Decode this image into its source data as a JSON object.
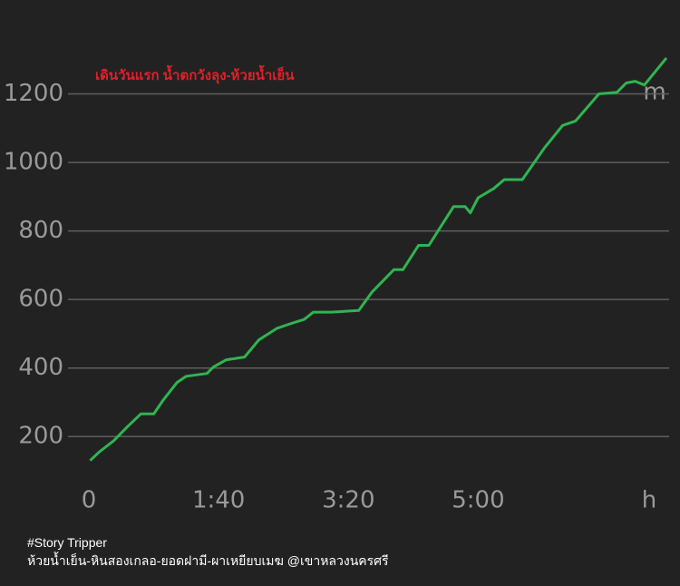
{
  "chart_data": {
    "type": "line",
    "title": "เดินวันแรก น้ำตกวังลุง-ห้วยน้ำเย็น",
    "x": [
      1,
      8,
      19,
      29,
      40,
      50,
      57,
      68,
      75,
      91,
      96,
      106,
      120,
      131,
      145,
      155,
      166,
      173,
      187,
      208,
      218,
      235,
      242,
      254,
      262,
      281,
      290,
      294,
      300,
      312,
      320,
      334,
      351,
      365,
      375,
      393,
      407,
      414,
      421,
      428,
      445
    ],
    "values": [
      130,
      155,
      187,
      226,
      266,
      266,
      305,
      358,
      376,
      384,
      403,
      424,
      432,
      482,
      516,
      529,
      542,
      563,
      563,
      568,
      621,
      687,
      687,
      758,
      758,
      871,
      871,
      853,
      897,
      924,
      950,
      950,
      1042,
      1108,
      1121,
      1200,
      1205,
      1232,
      1237,
      1226,
      1305
    ],
    "color": "#2fb551",
    "xlim": [
      0,
      445
    ],
    "ylim": [
      100,
      1310
    ],
    "xticks": [
      0,
      {
        "value": 100,
        "label": "1:40"
      },
      {
        "value": 200,
        "label": "3:20"
      },
      {
        "value": 300,
        "label": "5:00"
      }
    ],
    "yticks": [
      200,
      400,
      600,
      800,
      1000,
      1200
    ],
    "x_unit": "h",
    "y_unit": "m",
    "grid": true
  },
  "footer": [
    "#Story Tripper",
    "ห้วยน้ำเย็น-หินสองเกลอ-ยอดฝามี-ผาเหยียบเมฆ @เขาหลวงนครศรี"
  ]
}
